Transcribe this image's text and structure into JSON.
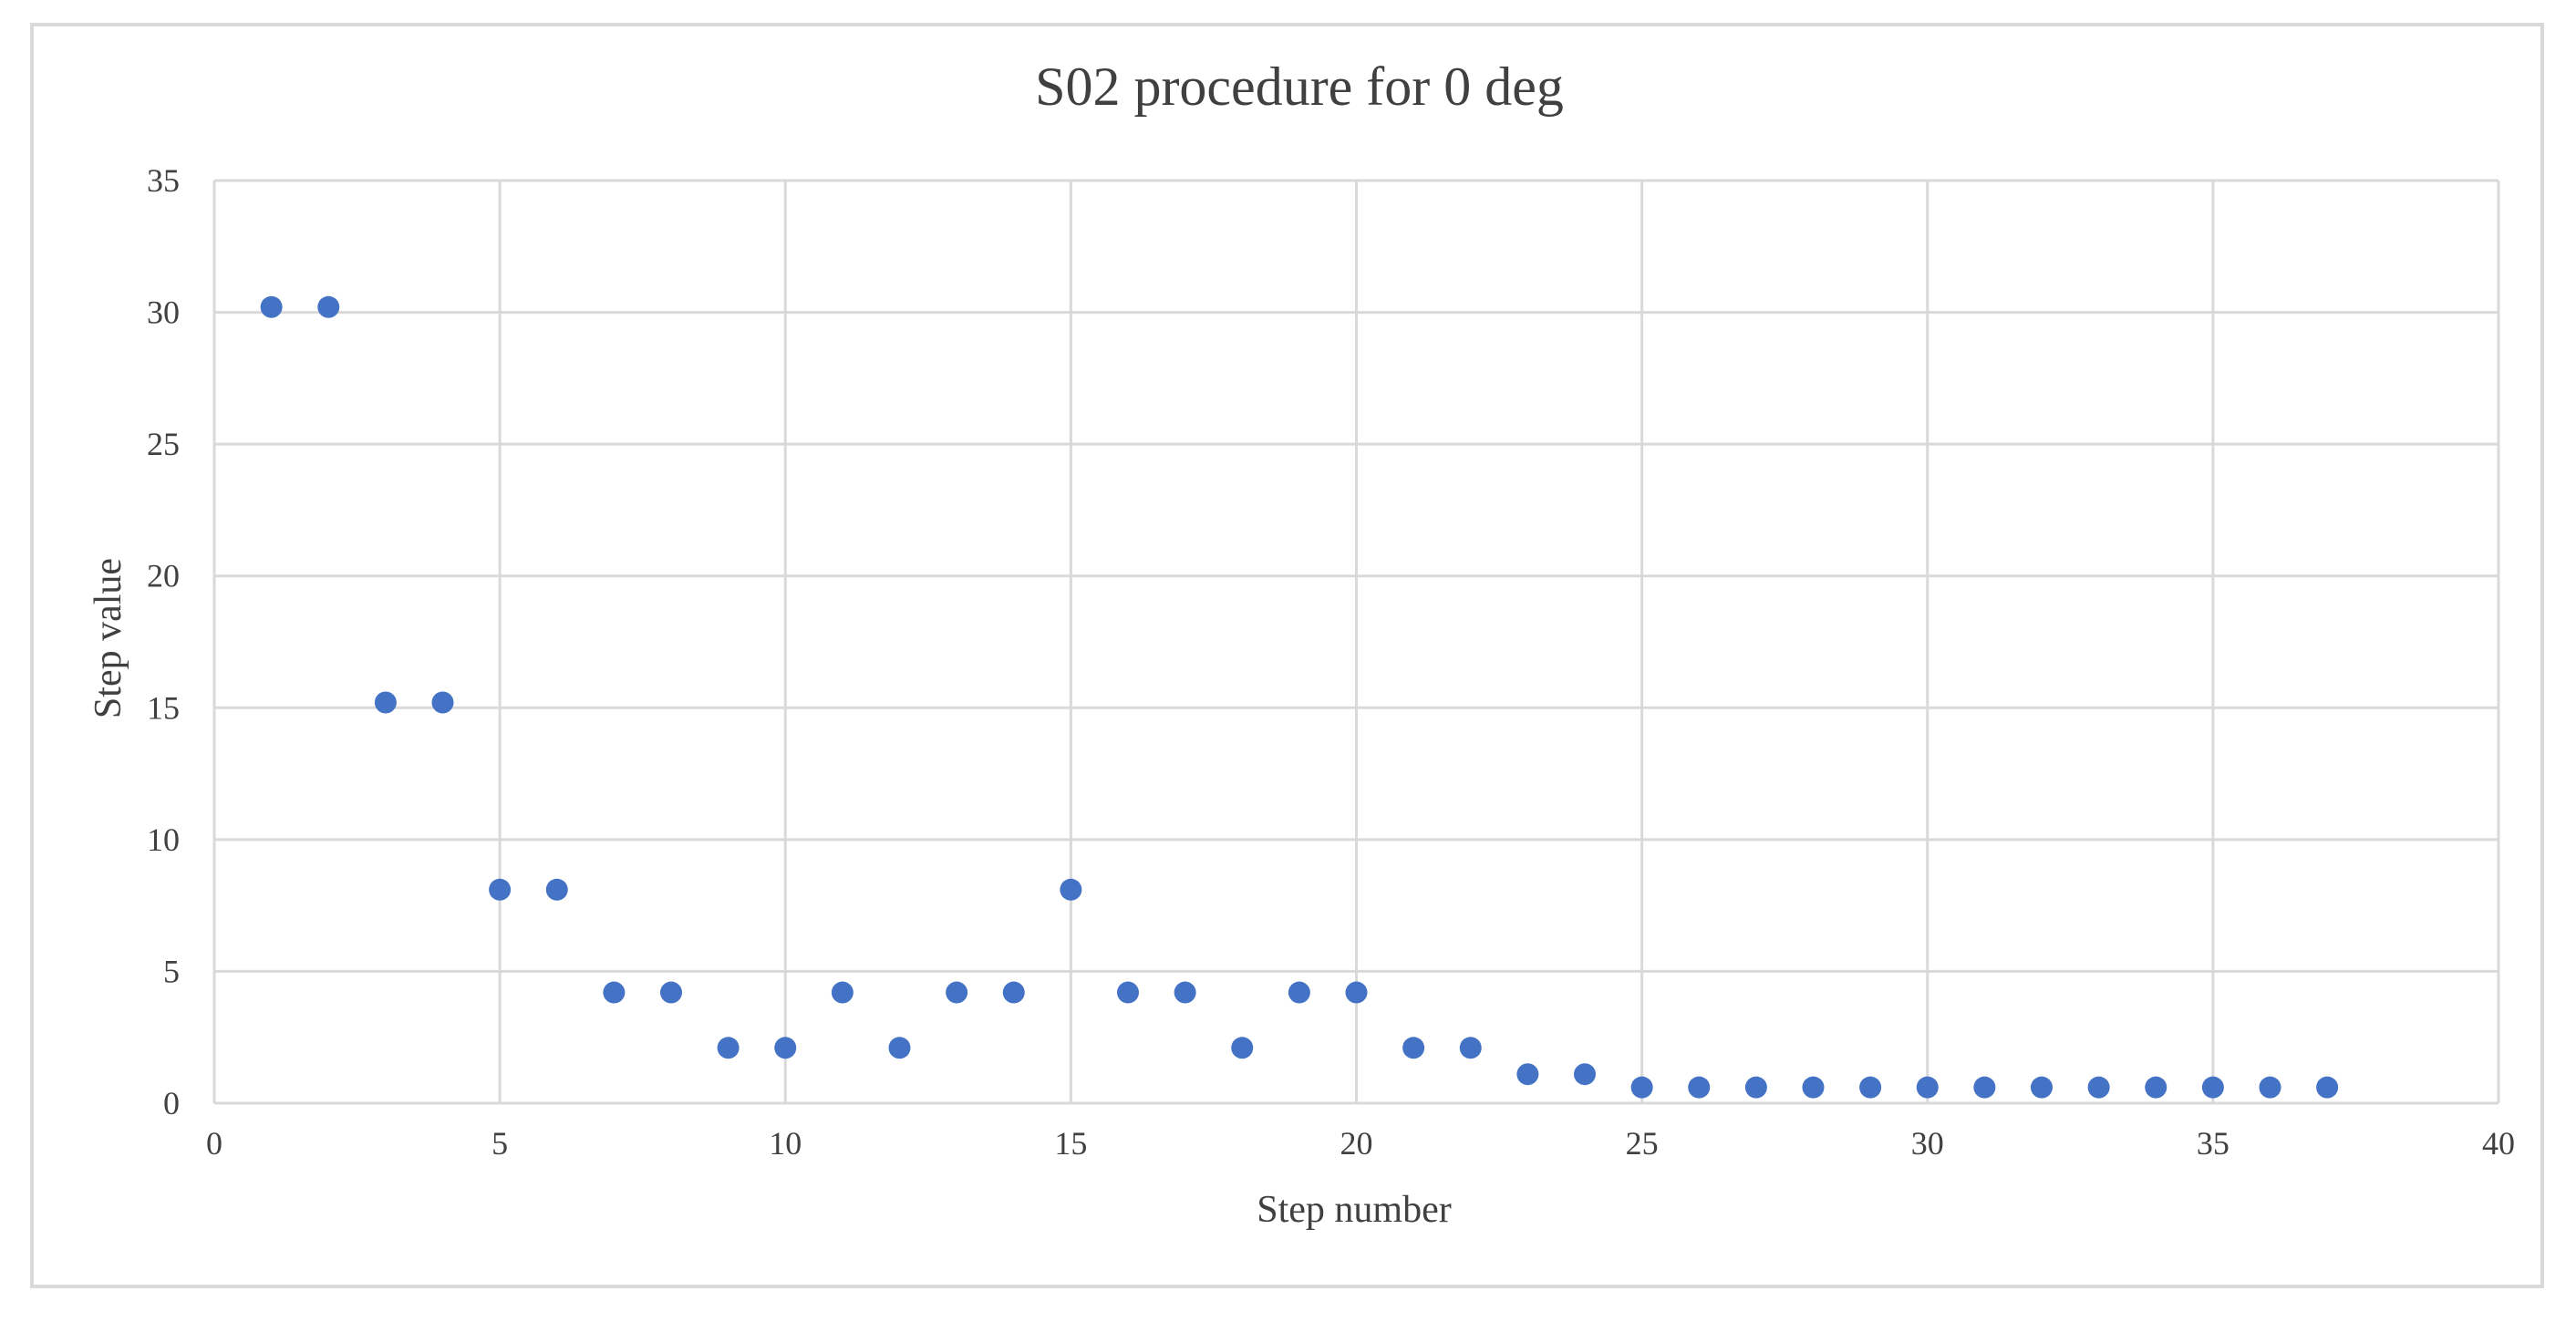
{
  "chart_data": {
    "type": "scatter",
    "title": "S02 procedure for 0 deg",
    "xlabel": "Step number",
    "ylabel": "Step  value",
    "xlim": [
      0,
      40
    ],
    "ylim": [
      0,
      35
    ],
    "xticks": [
      0,
      5,
      10,
      15,
      20,
      25,
      30,
      35,
      40
    ],
    "yticks": [
      0,
      5,
      10,
      15,
      20,
      25,
      30,
      35
    ],
    "grid": true,
    "legend": "none",
    "marker_color": "#4472c4",
    "series": [
      {
        "x": [
          1,
          2,
          3,
          4,
          5,
          6,
          7,
          8,
          9,
          10,
          11,
          12,
          13,
          14,
          15,
          16,
          17,
          18,
          19,
          20,
          21,
          22,
          23,
          24,
          25,
          26,
          27,
          28,
          29,
          30,
          31,
          32,
          33,
          34,
          35,
          36,
          37
        ],
        "y": [
          30.2,
          30.2,
          15.2,
          15.2,
          8.1,
          8.1,
          4.2,
          4.2,
          2.1,
          2.1,
          4.2,
          2.1,
          4.2,
          4.2,
          8.1,
          4.2,
          4.2,
          2.1,
          4.2,
          4.2,
          2.1,
          2.1,
          1.1,
          1.1,
          0.6,
          0.6,
          0.6,
          0.6,
          0.6,
          0.6,
          0.6,
          0.6,
          0.6,
          0.6,
          0.6,
          0.6,
          0.6
        ]
      }
    ]
  }
}
